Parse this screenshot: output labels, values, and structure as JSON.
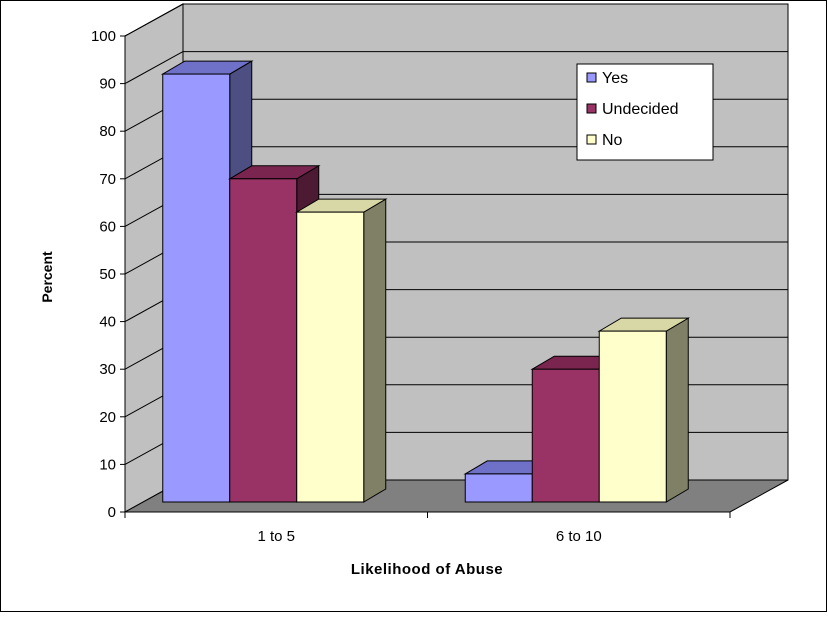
{
  "chart_data": {
    "type": "bar",
    "style": "3d-clustered",
    "categories": [
      "1 to 5",
      "6 to 10"
    ],
    "series": [
      {
        "name": "Yes",
        "values": [
          92,
          8
        ]
      },
      {
        "name": "Undecided",
        "values": [
          70,
          30
        ]
      },
      {
        "name": "No",
        "values": [
          63,
          38
        ]
      }
    ],
    "xlabel": "Likelihood of Abuse",
    "ylabel": "Percent",
    "ylim": [
      0,
      100
    ],
    "yticks": [
      0,
      10,
      20,
      30,
      40,
      50,
      60,
      70,
      80,
      90,
      100
    ],
    "grid": true,
    "legend_position": "top-right",
    "colors": {
      "series": [
        {
          "front": "#9999ff",
          "top": "#6f70c8",
          "side": "#4d4f82"
        },
        {
          "front": "#993366",
          "top": "#7a2550",
          "side": "#4d1a33"
        },
        {
          "front": "#ffffcc",
          "top": "#d8d8a6",
          "side": "#808066"
        }
      ],
      "wall": "#c0c0c0",
      "floor": "#808080",
      "grid": "#000000"
    }
  }
}
